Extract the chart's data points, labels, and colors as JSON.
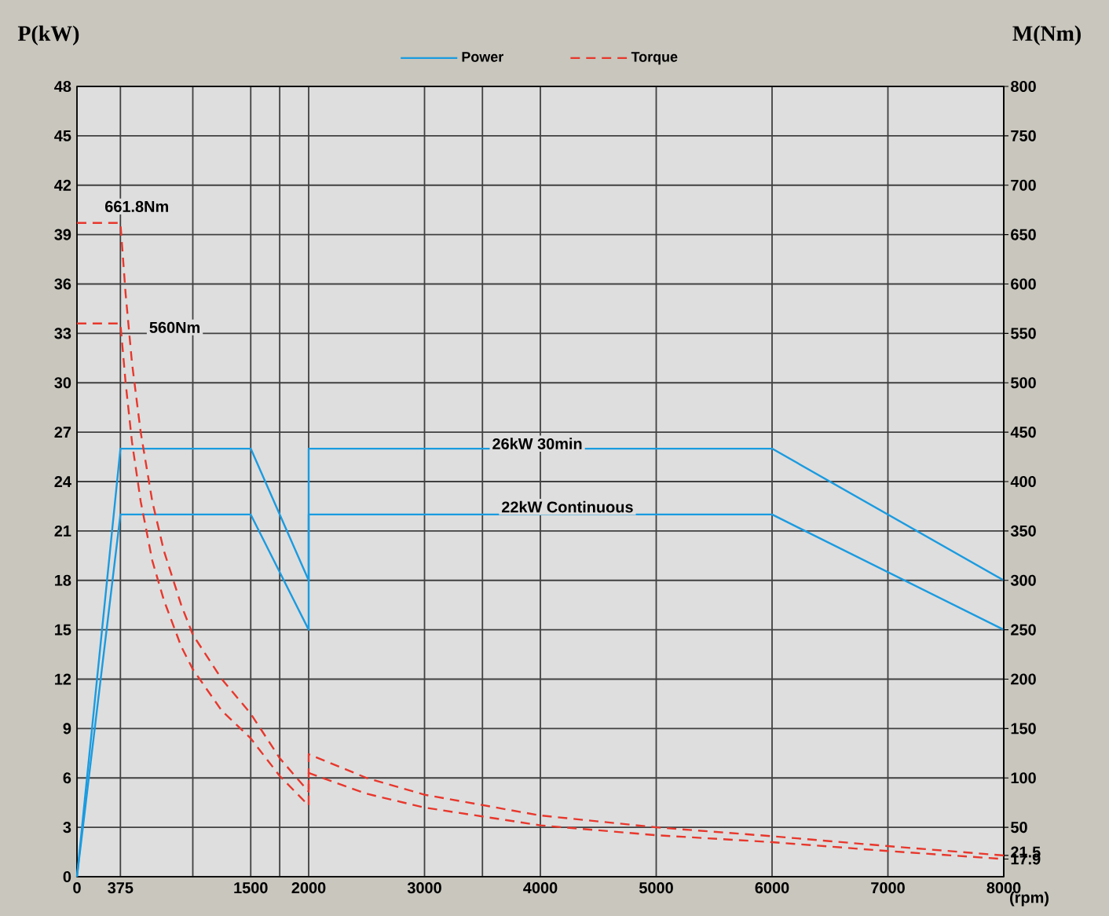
{
  "chart_data": {
    "type": "line",
    "xlabel": "(rpm)",
    "ylabel": "P(kW)",
    "y2label": "M(Nm)",
    "xlim": [
      0,
      8000
    ],
    "ylim": [
      0,
      48
    ],
    "y2lim": [
      0,
      800
    ],
    "xticks": [
      0,
      375,
      {
        "value": 1000,
        "label": null
      },
      1500,
      {
        "value": 1750,
        "label": null
      },
      2000,
      3000,
      {
        "value": 3500,
        "label": null
      },
      4000,
      5000,
      6000,
      7000,
      8000
    ],
    "yticks": [
      0,
      3,
      6,
      9,
      12,
      15,
      18,
      21,
      24,
      27,
      30,
      33,
      36,
      39,
      42,
      45,
      48
    ],
    "y2ticks": [
      17.9,
      21.5,
      50,
      100,
      150,
      200,
      250,
      300,
      350,
      400,
      450,
      500,
      550,
      600,
      650,
      700,
      750,
      800
    ],
    "grid": true,
    "legend": "top",
    "line_style": "solid",
    "series": [
      {
        "name": "Power",
        "color": "#1a9be0",
        "x": [
          0,
          375,
          1500,
          2000,
          2000,
          6000,
          8000
        ],
        "values": [
          0,
          26,
          26,
          18,
          26,
          26,
          18
        ]
      },
      {
        "color": "#1a9be0",
        "x": [
          0,
          375,
          1500,
          2000,
          2000,
          6000,
          8000
        ],
        "values": [
          0,
          22,
          22,
          15,
          22,
          22,
          15
        ]
      },
      {
        "name": "Torque",
        "color": "#e8372c",
        "axis": "y2",
        "line_style": "dashed",
        "x": [
          0,
          375,
          420,
          475,
          550,
          650,
          750,
          900,
          1000,
          1250,
          1500,
          1750,
          2000,
          2000,
          2500,
          3000,
          4000,
          5000,
          6000,
          7000,
          8000
        ],
        "values": [
          661.8,
          661.8,
          590,
          520,
          450,
          380,
          330,
          275,
          245,
          200,
          165,
          120,
          86,
          124,
          100,
          83,
          62,
          50,
          41,
          31,
          21.5
        ]
      },
      {
        "color": "#e8372c",
        "axis": "y2",
        "line_style": "dashed",
        "x": [
          0,
          375,
          420,
          475,
          550,
          650,
          750,
          900,
          1000,
          1250,
          1500,
          1750,
          2000,
          2000,
          2500,
          3000,
          4000,
          5000,
          6000,
          7000,
          8000
        ],
        "values": [
          560,
          560,
          500,
          440,
          380,
          320,
          280,
          233,
          210,
          168,
          140,
          102,
          72,
          105,
          84,
          70,
          52,
          42,
          35,
          26,
          17.9
        ]
      }
    ],
    "annotations": [
      "661.8Nm",
      "560Nm",
      "26kW  30min",
      "22kW  Continuous"
    ]
  }
}
